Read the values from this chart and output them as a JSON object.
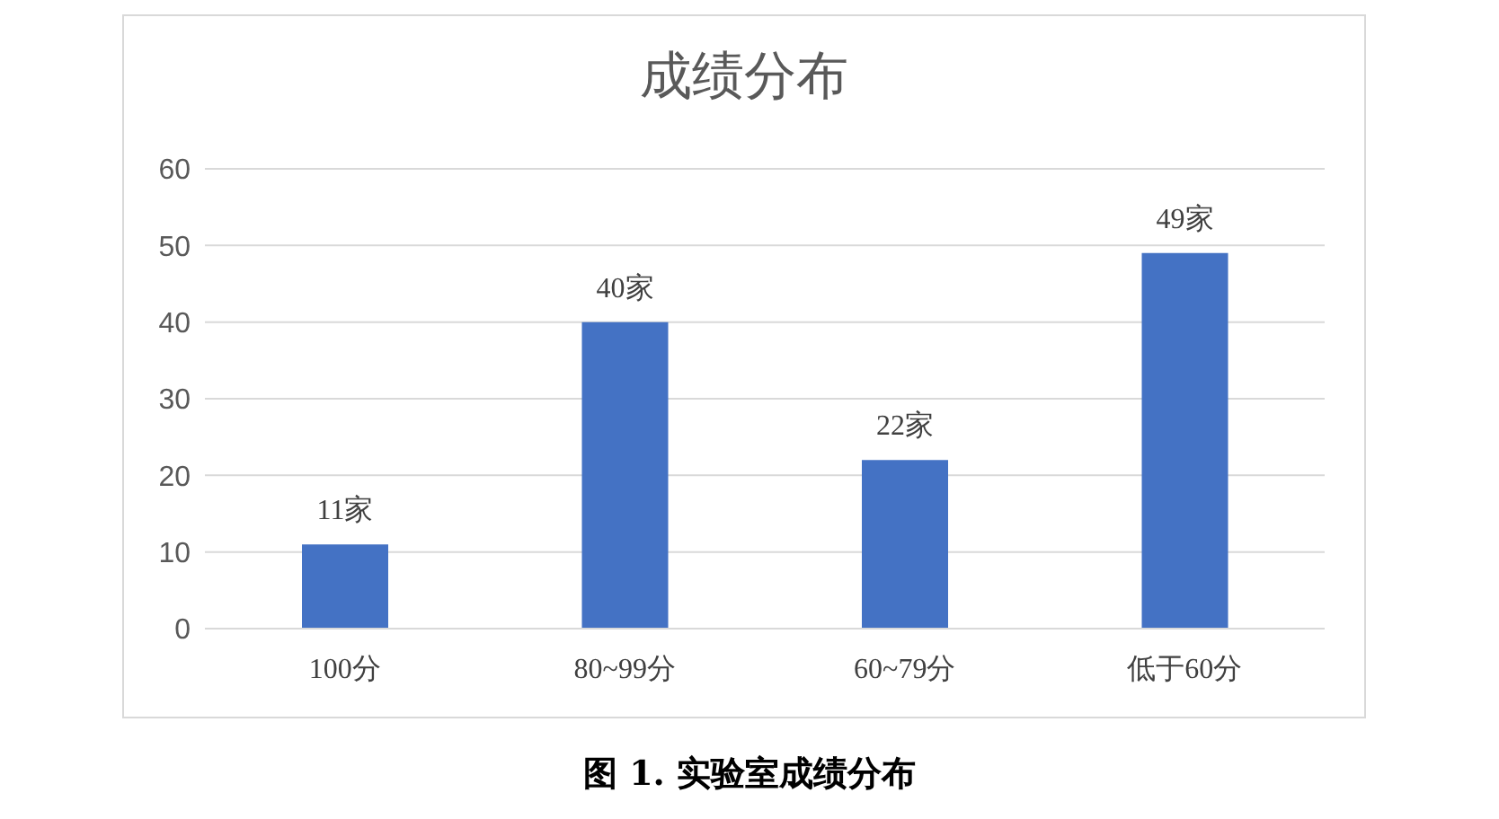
{
  "chart_data": {
    "type": "bar",
    "title": "成绩分布",
    "categories": [
      "100分",
      "80~99分",
      "60~79分",
      "低于60分"
    ],
    "values": [
      11,
      40,
      22,
      49
    ],
    "value_labels": [
      "11家",
      "40家",
      "22家",
      "49家"
    ],
    "color": "#4472c4",
    "ylim": [
      0,
      60
    ],
    "yticks": [
      0,
      10,
      20,
      30,
      40,
      50,
      60
    ],
    "grid": "y",
    "annotations": [
      "图 1. 实验室成绩分布"
    ]
  }
}
